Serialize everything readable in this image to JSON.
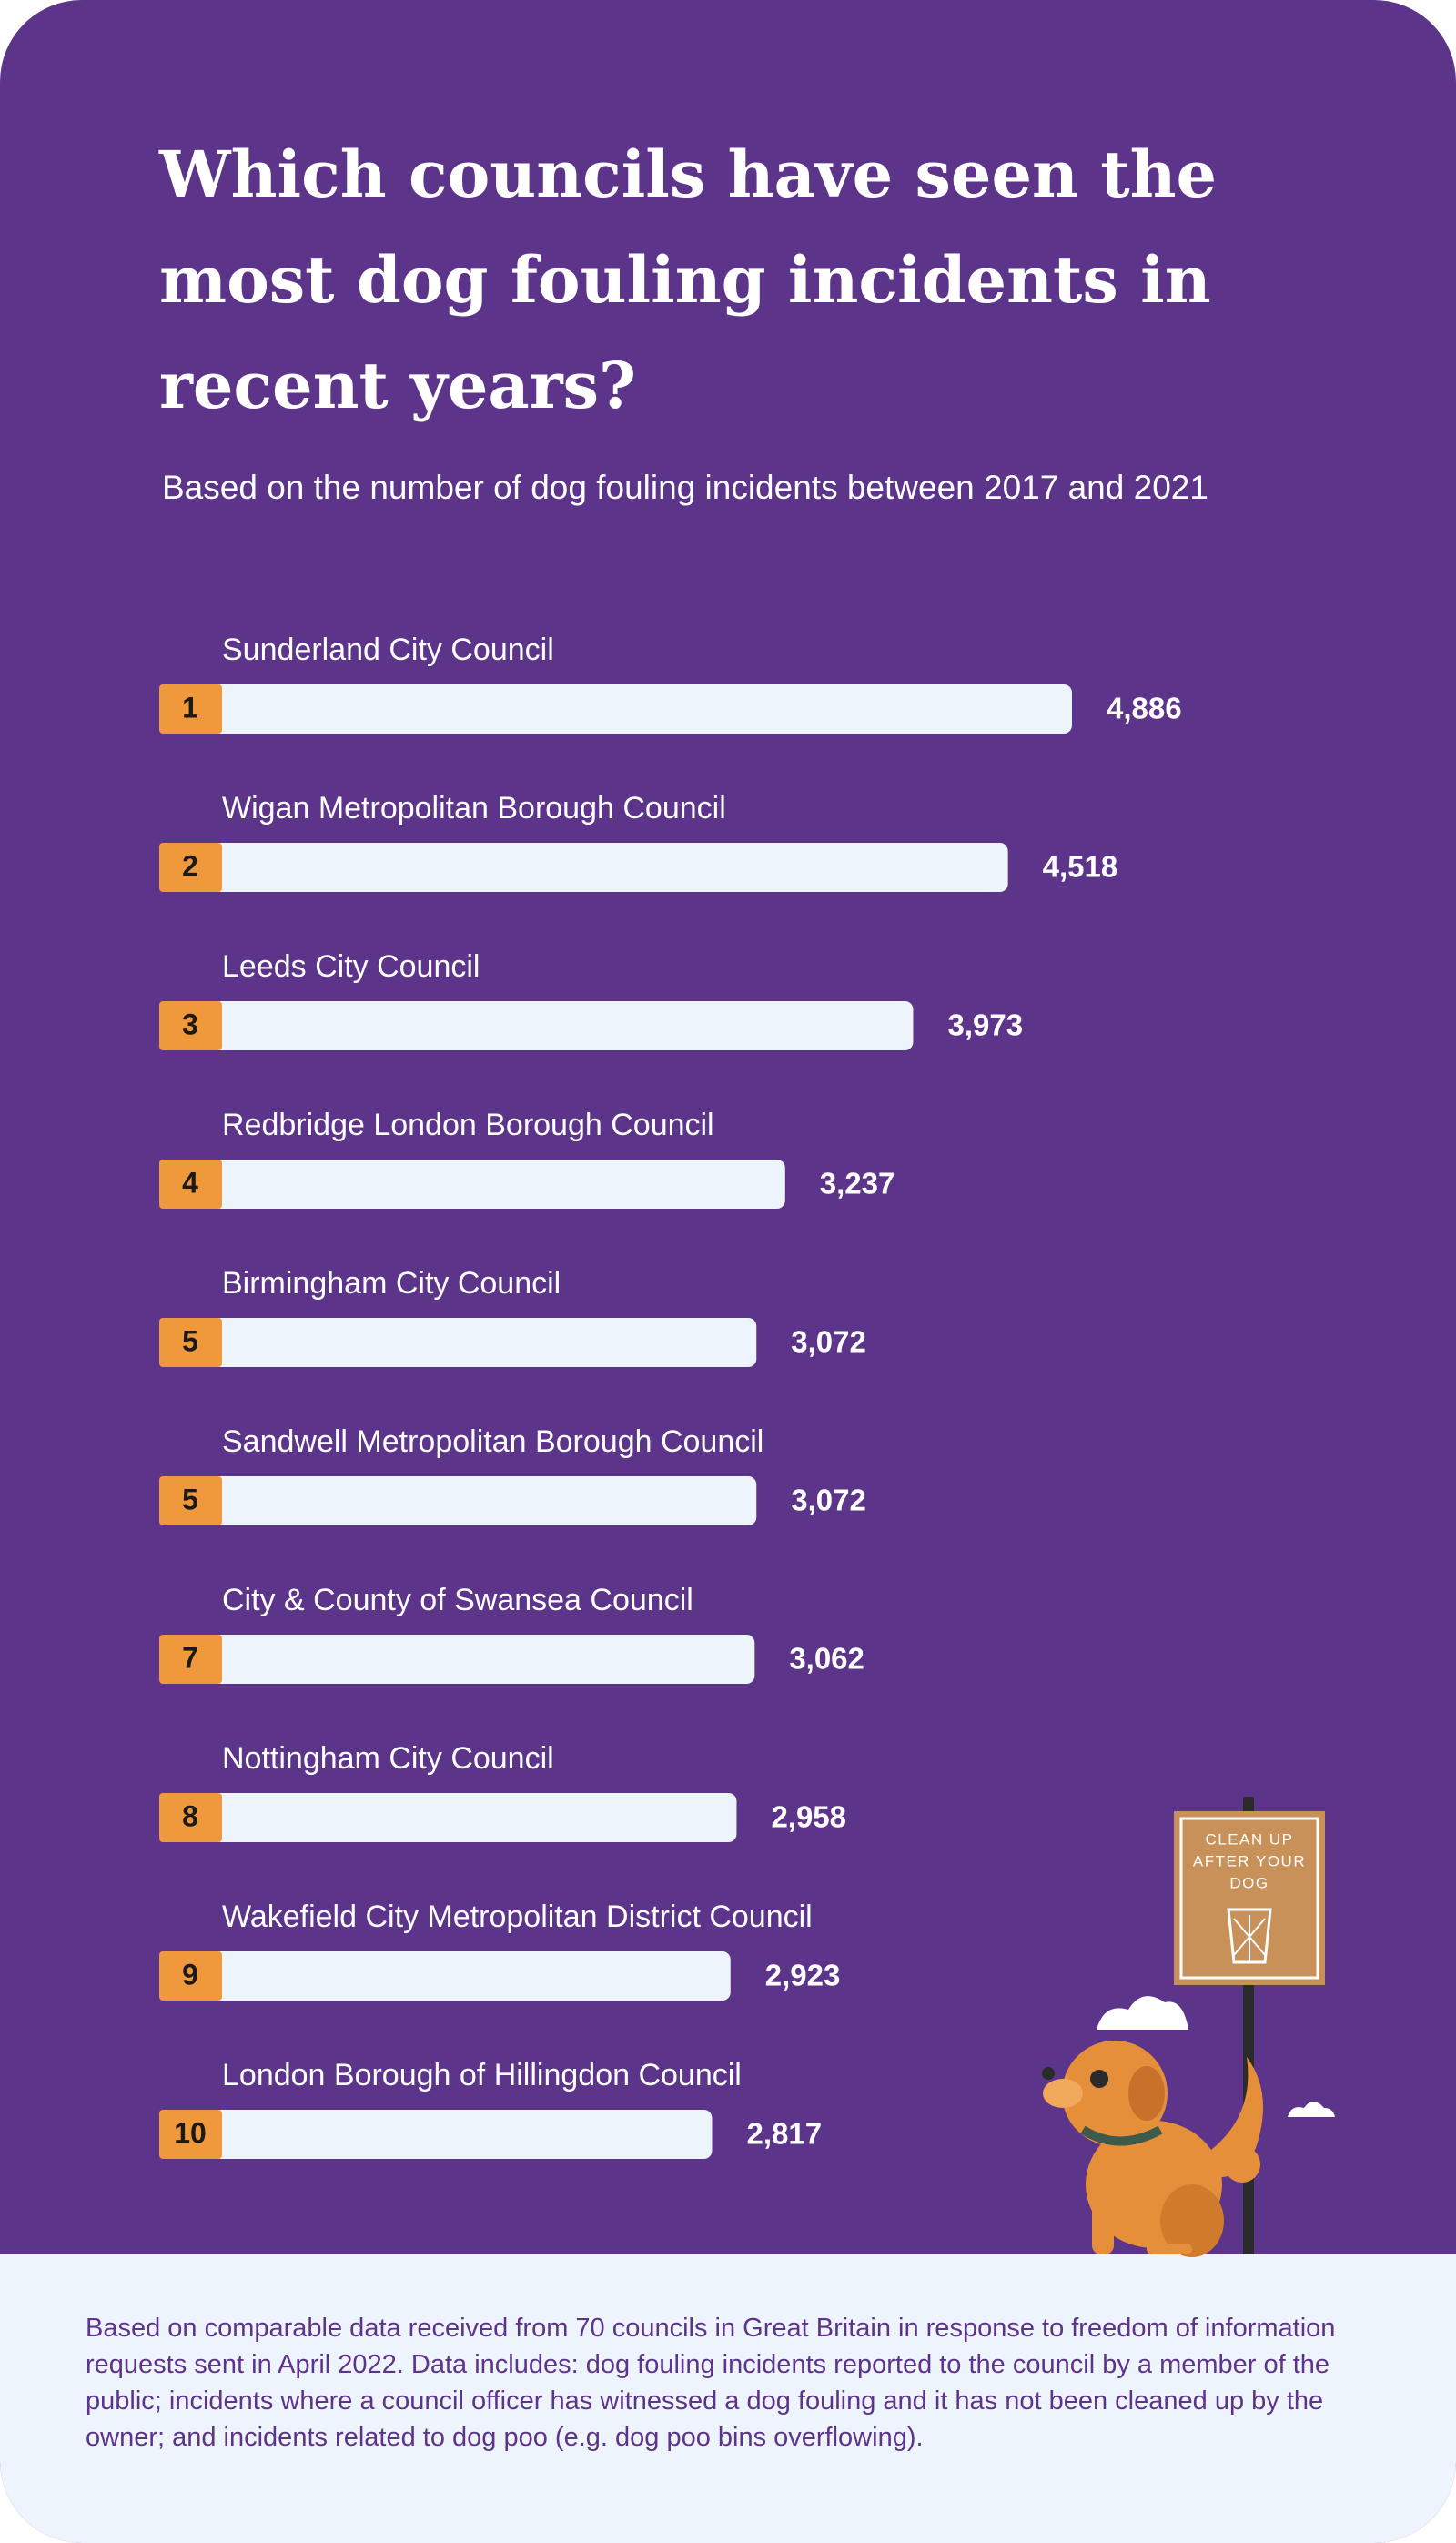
{
  "chart_data": {
    "type": "bar",
    "title": [
      "Which councils have seen the",
      "most dog fouling incidents in",
      "recent years?"
    ],
    "subtitle": "Based on the number of dog fouling incidents between 2017 and 2021",
    "categories": [
      "Sunderland City Council",
      "Wigan Metropolitan Borough Council",
      "Leeds City Council",
      "Redbridge London Borough Council",
      "Birmingham City Council",
      "Sandwell Metropolitan Borough Council",
      "City & County of Swansea Council",
      "Nottingham City Council",
      "Wakefield City Metropolitan District Council",
      "London Borough of Hillingdon Council"
    ],
    "ranks": [
      "1",
      "2",
      "3",
      "4",
      "5",
      "5",
      "7",
      "8",
      "9",
      "10"
    ],
    "values": [
      4886,
      4518,
      3973,
      3237,
      3072,
      3072,
      3062,
      2958,
      2923,
      2817
    ],
    "value_labels": [
      "4,886",
      "4,518",
      "3,973",
      "3,237",
      "3,072",
      "3,072",
      "3,062",
      "2,958",
      "2,923",
      "2,817"
    ],
    "color": "#eef4fc",
    "rank_color": "#f0993c",
    "sign_text": [
      "CLEAN UP",
      "AFTER YOUR",
      "DOG"
    ],
    "footnote": "Based on comparable data received from 70 councils in Great Britain in response to freedom of information requests sent in April 2022. Data includes: dog fouling incidents reported to the council by a member of the public; incidents where a council officer has witnessed a dog fouling and it has not been cleaned up by the owner; and incidents related to dog poo (e.g. dog poo bins overflowing)."
  }
}
